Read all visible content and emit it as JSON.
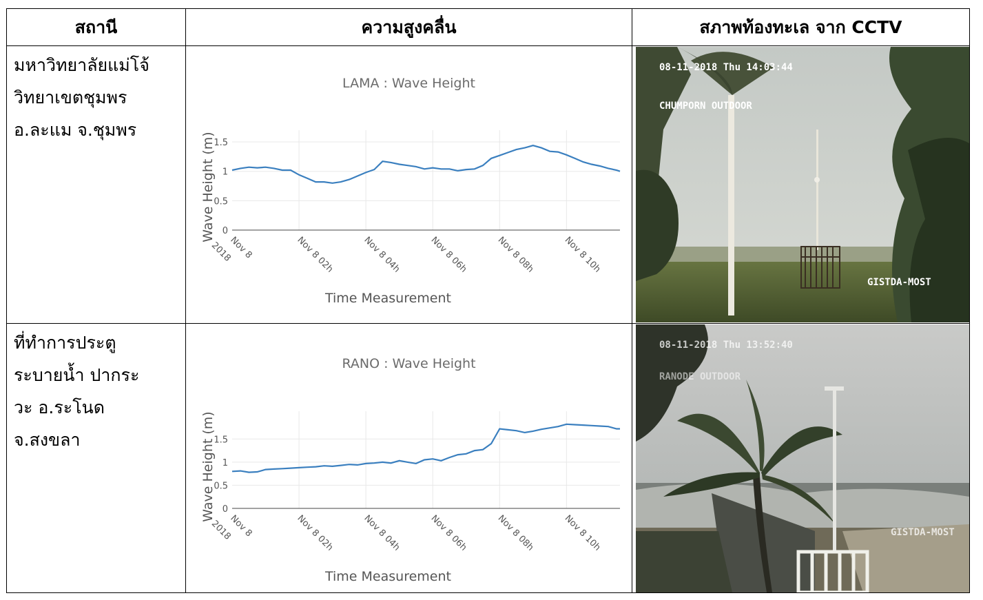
{
  "headers": {
    "station": "สถานี",
    "wave": "ความสูงคลื่น",
    "cctv": "สภาพท้องทะเล จาก CCTV"
  },
  "rows": [
    {
      "station_lines": [
        "มหาวิทยาลัยแม่โจ้",
        "วิทยาเขตชุมพร",
        "อ.ละแม จ.ชุมพร"
      ],
      "cctv": {
        "timestamp": "08-11-2018 Thu 14:03:44",
        "camera": "CHUMPORN OUTDOOR",
        "watermark": "GISTDA-MOST"
      }
    },
    {
      "station_lines": [
        "ที่ทำการประตู",
        "ระบายน้ำ ปากระ",
        "วะ อ.ระโนด",
        "จ.สงขลา"
      ],
      "cctv": {
        "timestamp": "08-11-2018 Thu 13:52:40",
        "camera": "RANODE OUTDOOR",
        "watermark": "GISTDA-MOST"
      }
    }
  ],
  "chart_data": [
    {
      "type": "line",
      "title": "LAMA : Wave Height",
      "xlabel": "Time Measurement",
      "ylabel": "Wave Height  (m)",
      "ylim": [
        0,
        1.7
      ],
      "xlim": [
        0,
        11.6
      ],
      "yticks": [
        "0",
        "0.5",
        "1",
        "1.5"
      ],
      "xtick_labels": [
        [
          "Nov 8",
          "2018"
        ],
        [
          "Nov 8 02h"
        ],
        [
          "Nov 8 04h"
        ],
        [
          "Nov 8 06h"
        ],
        [
          "Nov 8 08h"
        ],
        [
          "Nov 8 10h"
        ]
      ],
      "grid": true,
      "line_color": "#3a7fbf",
      "series": [
        {
          "x": [
            0,
            0.25,
            0.5,
            0.75,
            1,
            1.25,
            1.5,
            1.75,
            2,
            2.25,
            2.5,
            2.75,
            3,
            3.25,
            3.5,
            3.75,
            4,
            4.25,
            4.5,
            4.75,
            5,
            5.25,
            5.5,
            5.75,
            6,
            6.25,
            6.5,
            6.75,
            7,
            7.25,
            7.5,
            7.75,
            8,
            8.25,
            8.5,
            8.75,
            9,
            9.25,
            9.5,
            9.75,
            10,
            10.25,
            10.5,
            10.75,
            11,
            11.25,
            11.5,
            11.6
          ],
          "y": [
            1.02,
            1.05,
            1.07,
            1.06,
            1.07,
            1.05,
            1.02,
            1.02,
            0.94,
            0.88,
            0.82,
            0.82,
            0.8,
            0.82,
            0.86,
            0.92,
            0.98,
            1.03,
            1.17,
            1.15,
            1.12,
            1.1,
            1.08,
            1.04,
            1.06,
            1.04,
            1.04,
            1.01,
            1.03,
            1.04,
            1.1,
            1.22,
            1.27,
            1.32,
            1.37,
            1.4,
            1.44,
            1.4,
            1.34,
            1.33,
            1.28,
            1.22,
            1.16,
            1.12,
            1.09,
            1.05,
            1.02,
            1.0
          ]
        }
      ]
    },
    {
      "type": "line",
      "title": "RANO : Wave Height",
      "xlabel": "Time Measurement",
      "ylabel": "Wave Height  (m)",
      "ylim": [
        0,
        2.1
      ],
      "xlim": [
        0,
        11.6
      ],
      "yticks": [
        "0",
        "0.5",
        "1",
        "1.5"
      ],
      "xtick_labels": [
        [
          "Nov 8",
          "2018"
        ],
        [
          "Nov 8 02h"
        ],
        [
          "Nov 8 04h"
        ],
        [
          "Nov 8 06h"
        ],
        [
          "Nov 8 08h"
        ],
        [
          "Nov 8 10h"
        ]
      ],
      "grid": true,
      "line_color": "#3a7fbf",
      "series": [
        {
          "x": [
            0,
            0.25,
            0.5,
            0.75,
            1,
            1.25,
            1.5,
            1.75,
            2,
            2.25,
            2.5,
            2.75,
            3,
            3.25,
            3.5,
            3.75,
            4,
            4.25,
            4.5,
            4.75,
            5,
            5.25,
            5.5,
            5.75,
            6,
            6.25,
            6.5,
            6.75,
            7,
            7.25,
            7.5,
            7.75,
            8,
            8.25,
            8.5,
            8.75,
            9,
            9.25,
            9.5,
            9.75,
            10,
            10.25,
            10.5,
            10.75,
            11,
            11.25,
            11.5,
            11.6
          ],
          "y": [
            0.8,
            0.81,
            0.78,
            0.79,
            0.84,
            0.85,
            0.86,
            0.87,
            0.88,
            0.89,
            0.9,
            0.92,
            0.91,
            0.93,
            0.95,
            0.94,
            0.97,
            0.98,
            1.0,
            0.98,
            1.03,
            1.0,
            0.97,
            1.05,
            1.07,
            1.03,
            1.1,
            1.16,
            1.18,
            1.25,
            1.27,
            1.4,
            1.72,
            1.7,
            1.68,
            1.64,
            1.67,
            1.71,
            1.74,
            1.77,
            1.82,
            1.81,
            1.8,
            1.79,
            1.78,
            1.77,
            1.72,
            1.72
          ]
        }
      ]
    }
  ]
}
